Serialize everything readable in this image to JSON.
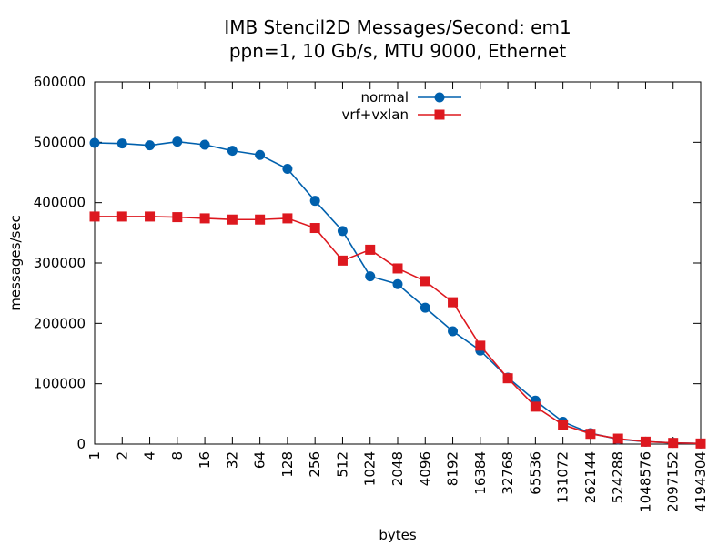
{
  "chart_data": {
    "type": "line",
    "title": "IMB Stencil2D Messages/Second: em1",
    "subtitle": "ppn=1, 10 Gb/s, MTU 9000, Ethernet",
    "xlabel": "bytes",
    "ylabel": "messages/sec",
    "categories": [
      "1",
      "2",
      "4",
      "8",
      "16",
      "32",
      "64",
      "128",
      "256",
      "512",
      "1024",
      "2048",
      "4096",
      "8192",
      "16384",
      "32768",
      "65536",
      "131072",
      "262144",
      "524288",
      "1048576",
      "2097152",
      "4194304"
    ],
    "ylim": [
      0,
      600000
    ],
    "yticks": [
      0,
      100000,
      200000,
      300000,
      400000,
      500000,
      600000
    ],
    "ytick_labels": [
      "0",
      "100000",
      "200000",
      "300000",
      "400000",
      "500000",
      "600000"
    ],
    "legend_position": "top-center",
    "grid": false,
    "series": [
      {
        "name": "normal",
        "color": "#0060ad",
        "marker": "circle",
        "values": [
          499000,
          498000,
          495000,
          501000,
          496000,
          486000,
          479000,
          456000,
          403000,
          353000,
          278000,
          265000,
          226000,
          187000,
          155000,
          110000,
          72000,
          37000,
          18000,
          8000,
          4000,
          2000,
          1000
        ]
      },
      {
        "name": "vrf+vxlan",
        "color": "#dd181f",
        "marker": "square",
        "values": [
          377000,
          377000,
          377000,
          376000,
          374000,
          372000,
          372000,
          374000,
          358000,
          304000,
          322000,
          291000,
          270000,
          235000,
          163000,
          109000,
          62000,
          32000,
          17000,
          9000,
          4000,
          2000,
          1000
        ]
      }
    ]
  }
}
